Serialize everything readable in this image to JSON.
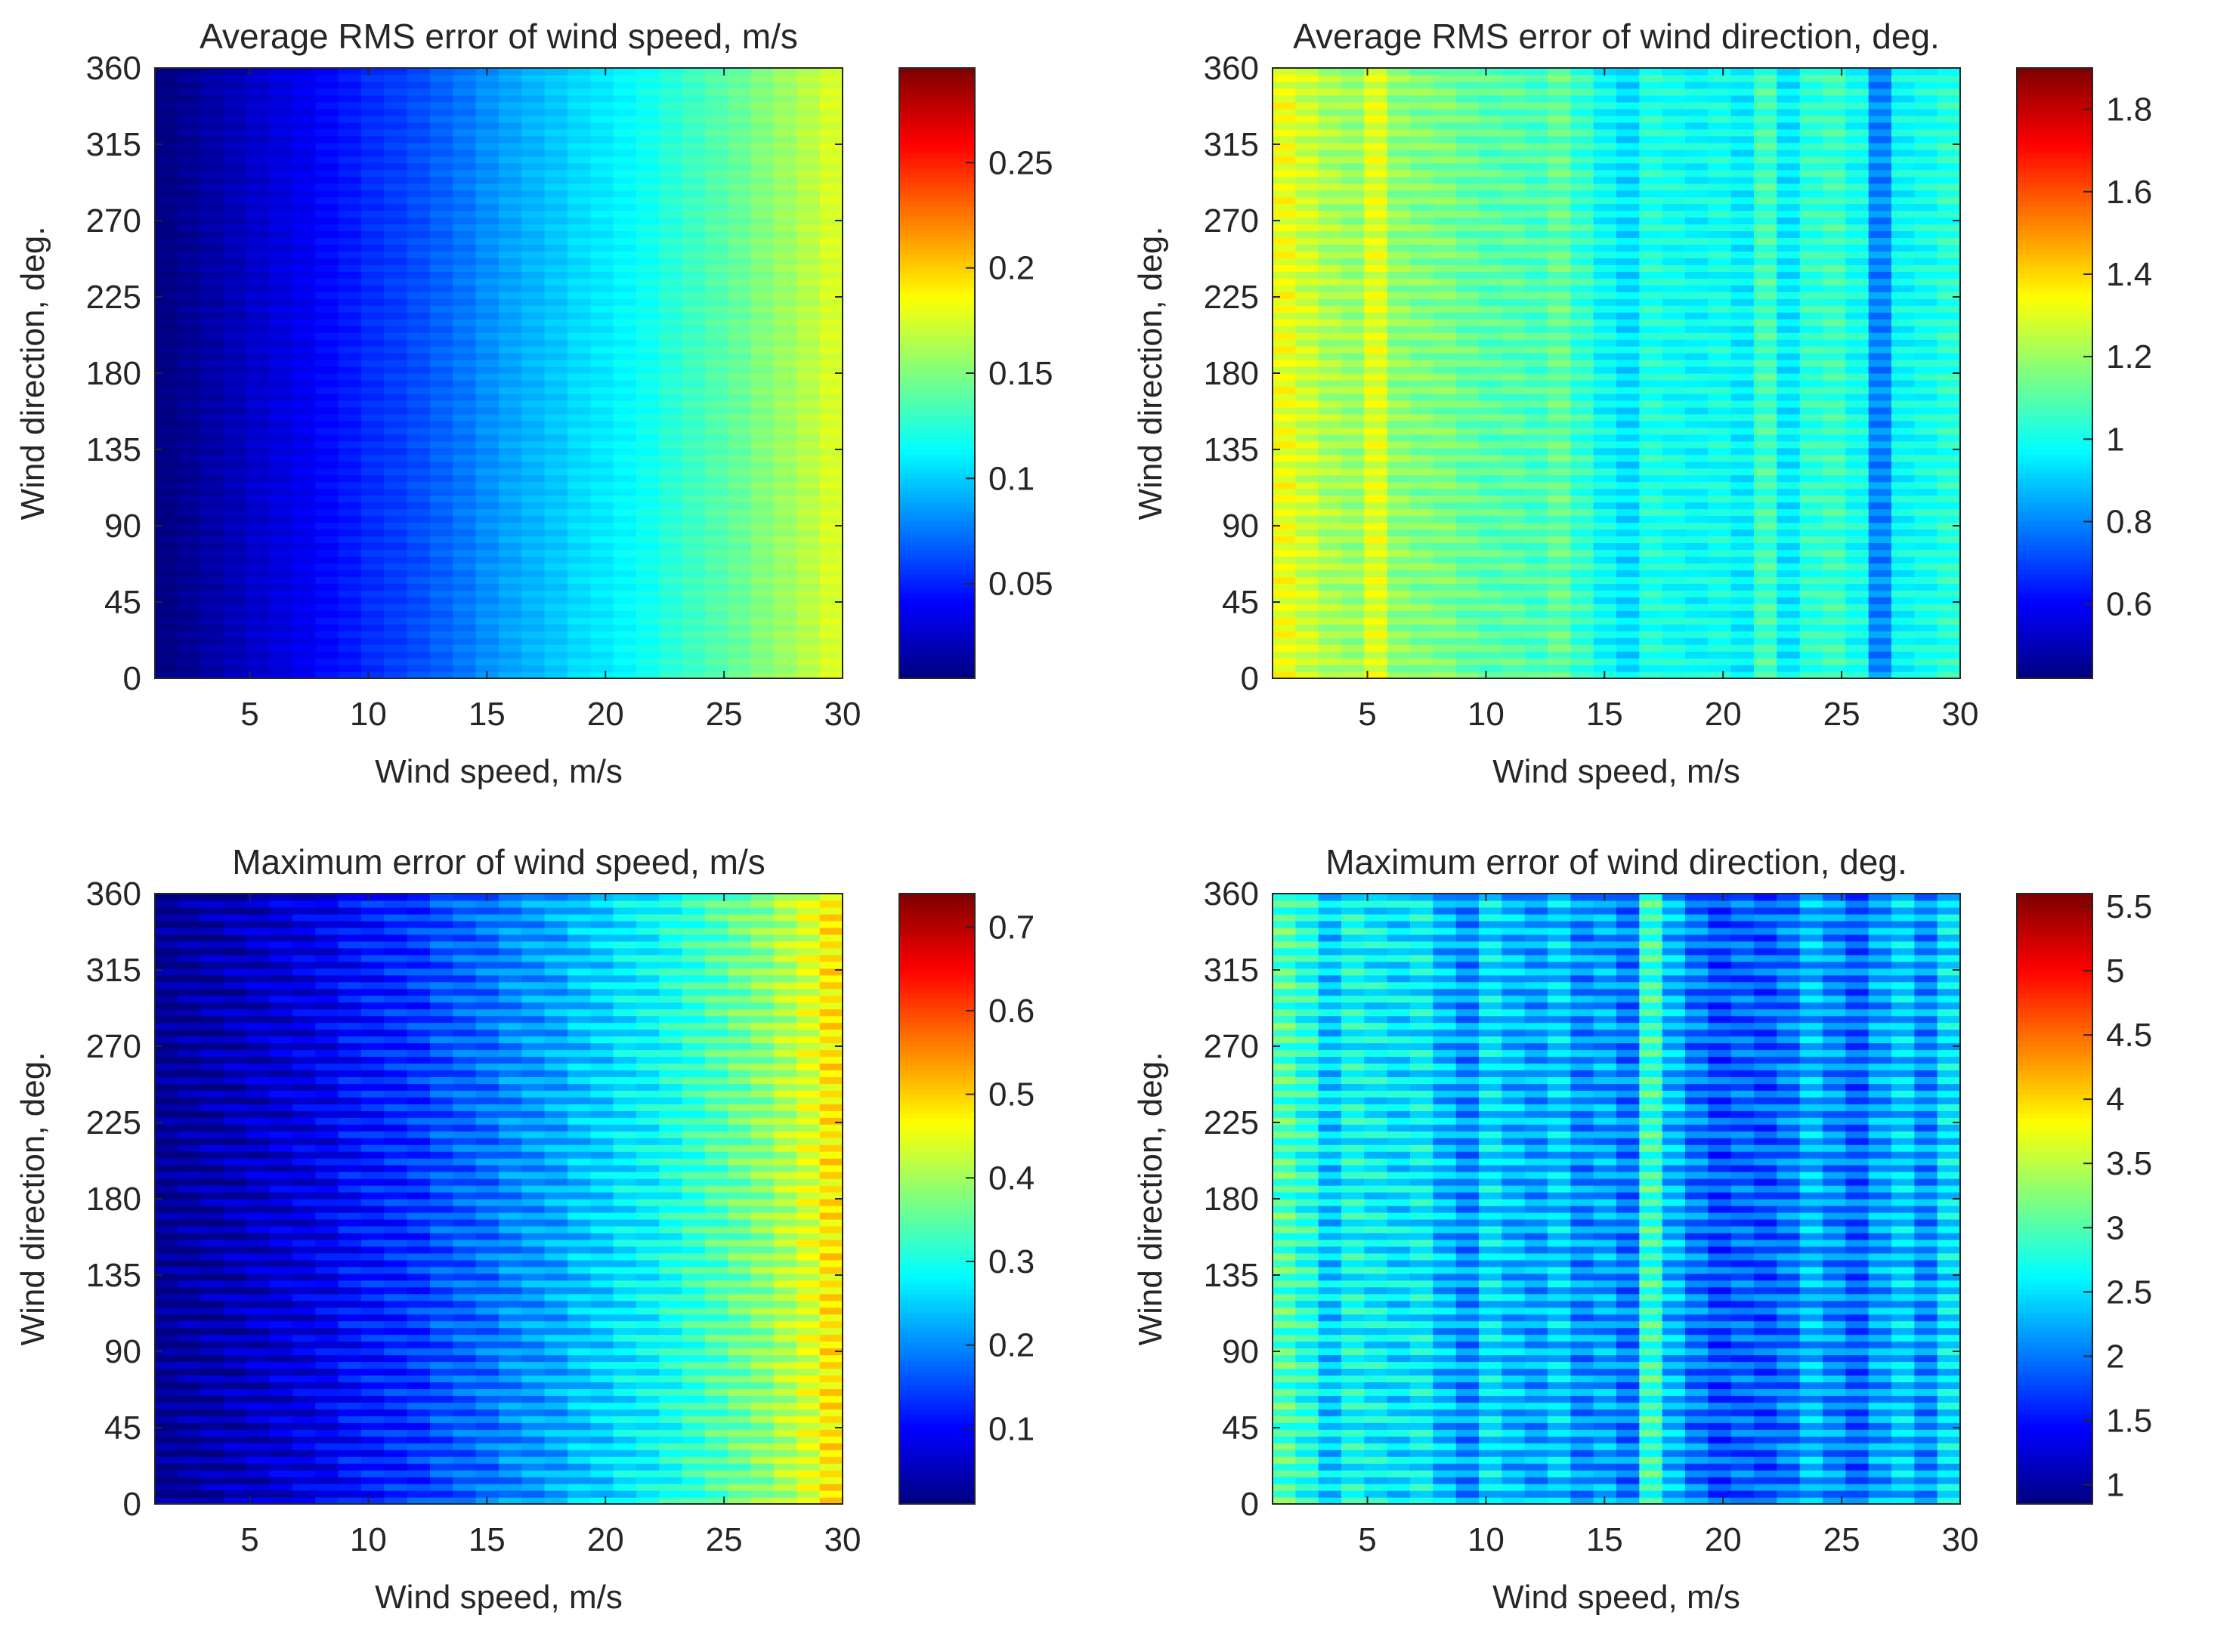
{
  "chart_data": [
    {
      "type": "heatmap",
      "title": "Average RMS error of wind speed, m/s",
      "xlabel": "Wind speed, m/s",
      "ylabel": "Wind direction, deg.",
      "xlim": [
        1,
        30
      ],
      "ylim": [
        0,
        360
      ],
      "xticks": [
        5,
        10,
        15,
        20,
        25,
        30
      ],
      "yticks": [
        0,
        45,
        90,
        135,
        180,
        225,
        270,
        315,
        360
      ],
      "colormap": "jet",
      "clim": [
        0.005,
        0.295
      ],
      "colorbar_ticks": [
        0.05,
        0.1,
        0.15,
        0.2,
        0.25
      ],
      "colorbar_tick_labels": [
        "0.05",
        "0.1",
        "0.15",
        "0.2",
        "0.25"
      ],
      "column_mean_values": [
        0.006,
        0.011,
        0.016,
        0.021,
        0.027,
        0.032,
        0.037,
        0.043,
        0.048,
        0.054,
        0.058,
        0.063,
        0.069,
        0.075,
        0.082,
        0.088,
        0.093,
        0.098,
        0.104,
        0.108,
        0.113,
        0.118,
        0.125,
        0.131,
        0.137,
        0.143,
        0.151,
        0.158,
        0.166,
        0.175
      ],
      "row_variation": 0.004
    },
    {
      "type": "heatmap",
      "title": "Average RMS error of wind direction, deg.",
      "xlabel": "Wind speed, m/s",
      "ylabel": "Wind direction, deg.",
      "xlim": [
        1,
        30
      ],
      "ylim": [
        0,
        360
      ],
      "xticks": [
        5,
        10,
        15,
        20,
        25,
        30
      ],
      "yticks": [
        0,
        45,
        90,
        135,
        180,
        225,
        270,
        315,
        360
      ],
      "colormap": "jet",
      "clim": [
        0.42,
        1.9
      ],
      "colorbar_ticks": [
        0.6,
        0.8,
        1,
        1.2,
        1.4,
        1.6,
        1.8
      ],
      "colorbar_tick_labels": [
        "0.6",
        "0.8",
        "1",
        "1.2",
        "1.4",
        "1.6",
        "1.8"
      ],
      "column_mean_values": [
        1.32,
        1.27,
        1.22,
        1.2,
        1.3,
        1.18,
        1.16,
        1.15,
        1.12,
        1.1,
        1.1,
        1.08,
        1.12,
        1.05,
        0.98,
        0.93,
        1.02,
        1.0,
        0.98,
        1.0,
        0.96,
        1.07,
        0.95,
        1.04,
        1.06,
        1.0,
        0.8,
        0.98,
        1.0,
        1.03
      ],
      "row_variation": 0.06
    },
    {
      "type": "heatmap",
      "title": "Maximum error of wind speed, m/s",
      "xlabel": "Wind speed, m/s",
      "ylabel": "Wind direction, deg.",
      "xlim": [
        1,
        30
      ],
      "ylim": [
        0,
        360
      ],
      "xticks": [
        5,
        10,
        15,
        20,
        25,
        30
      ],
      "yticks": [
        0,
        45,
        90,
        135,
        180,
        225,
        270,
        315,
        360
      ],
      "colormap": "jet",
      "clim": [
        0.01,
        0.74
      ],
      "colorbar_ticks": [
        0.1,
        0.2,
        0.3,
        0.4,
        0.5,
        0.6,
        0.7
      ],
      "colorbar_tick_labels": [
        "0.1",
        "0.2",
        "0.3",
        "0.4",
        "0.5",
        "0.6",
        "0.7"
      ],
      "column_mean_values": [
        0.02,
        0.03,
        0.04,
        0.05,
        0.06,
        0.07,
        0.08,
        0.09,
        0.11,
        0.12,
        0.13,
        0.14,
        0.16,
        0.17,
        0.18,
        0.2,
        0.21,
        0.22,
        0.24,
        0.25,
        0.27,
        0.28,
        0.3,
        0.32,
        0.34,
        0.36,
        0.38,
        0.41,
        0.44,
        0.48
      ],
      "row_variation": 0.04
    },
    {
      "type": "heatmap",
      "title": "Maximum error of wind direction, deg.",
      "xlabel": "Wind speed, m/s",
      "ylabel": "Wind direction, deg.",
      "xlim": [
        1,
        30
      ],
      "ylim": [
        0,
        360
      ],
      "xticks": [
        5,
        10,
        15,
        20,
        25,
        30
      ],
      "yticks": [
        0,
        45,
        90,
        135,
        180,
        225,
        270,
        315,
        360
      ],
      "colormap": "jet",
      "clim": [
        0.85,
        5.6
      ],
      "colorbar_ticks": [
        1,
        1.5,
        2,
        2.5,
        3,
        3.5,
        4,
        4.5,
        5,
        5.5
      ],
      "colorbar_tick_labels": [
        "1",
        "1.5",
        "2",
        "2.5",
        "3",
        "3.5",
        "4",
        "4.5",
        "5",
        "5.5"
      ],
      "column_mean_values": [
        3.0,
        2.8,
        2.4,
        2.7,
        2.6,
        2.5,
        2.6,
        2.3,
        2.1,
        2.5,
        2.3,
        2.2,
        2.4,
        2.1,
        2.2,
        2.0,
        2.9,
        2.3,
        2.0,
        1.8,
        1.9,
        1.85,
        2.0,
        2.3,
        2.1,
        1.9,
        2.2,
        2.4,
        2.1,
        2.5
      ],
      "row_variation": 0.35
    }
  ]
}
